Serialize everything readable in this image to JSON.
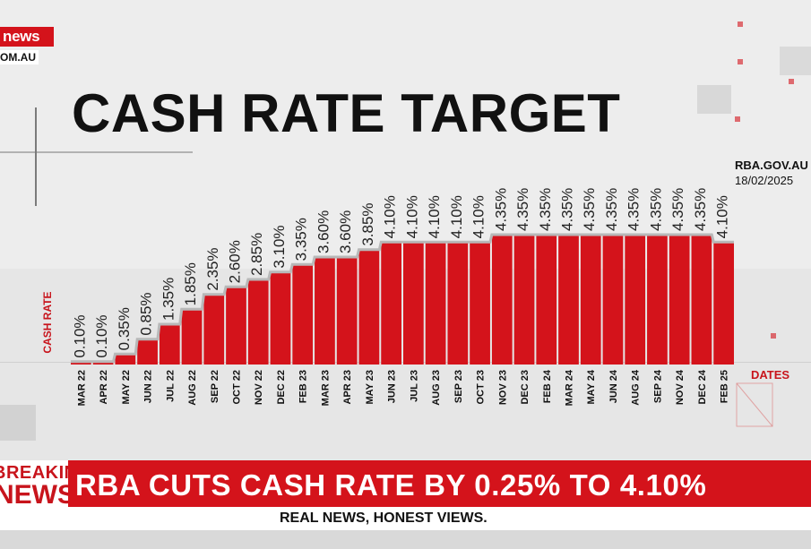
{
  "branding": {
    "channel_logo": "news",
    "website_partial": "OM.AU"
  },
  "title": "CASH RATE TARGET",
  "source": {
    "site": "RBA.GOV.AU",
    "date": "18/02/2025"
  },
  "colors": {
    "accent": "#d4131b",
    "bar": "#d4131b",
    "line": "#b8b8b8",
    "background": "#e6e6e6"
  },
  "chart_data": {
    "type": "bar",
    "ylabel": "CASH RATE",
    "xlabel": "DATES",
    "ylim": [
      0,
      4.5
    ],
    "grid": false,
    "categories": [
      "MAR 22",
      "APR 22",
      "MAY 22",
      "JUN 22",
      "JUL 22",
      "AUG 22",
      "SEP 22",
      "OCT 22",
      "NOV 22",
      "DEC 22",
      "FEB 23",
      "MAR 23",
      "APR 23",
      "MAY 23",
      "JUN 23",
      "JUL 23",
      "AUG 23",
      "SEP 23",
      "OCT 23",
      "NOV 23",
      "DEC 23",
      "FEB 24",
      "MAR 24",
      "MAY 24",
      "JUN 24",
      "AUG 24",
      "SEP 24",
      "NOV 24",
      "DEC 24",
      "FEB 25"
    ],
    "values": [
      0.1,
      0.1,
      0.35,
      0.85,
      1.35,
      1.85,
      2.35,
      2.6,
      2.85,
      3.1,
      3.35,
      3.6,
      3.6,
      3.85,
      4.1,
      4.1,
      4.1,
      4.1,
      4.1,
      4.35,
      4.35,
      4.35,
      4.35,
      4.35,
      4.35,
      4.35,
      4.35,
      4.35,
      4.35,
      4.1
    ],
    "data_labels": [
      "0.10%",
      "0.10%",
      "0.35%",
      "0.85%",
      "1.35%",
      "1.85%",
      "2.35%",
      "2.60%",
      "2.85%",
      "3.10%",
      "3.35%",
      "3.60%",
      "3.60%",
      "3.85%",
      "4.10%",
      "4.10%",
      "4.10%",
      "4.10%",
      "4.10%",
      "4.35%",
      "4.35%",
      "4.35%",
      "4.35%",
      "4.35%",
      "4.35%",
      "4.35%",
      "4.35%",
      "4.35%",
      "4.35%",
      "4.10%"
    ]
  },
  "ticker": {
    "label_top": "BREAKING",
    "label_bottom": "NEWS",
    "headline": "RBA CUTS CASH RATE BY 0.25% TO 4.10%"
  },
  "tagline": "REAL NEWS, HONEST VIEWS."
}
